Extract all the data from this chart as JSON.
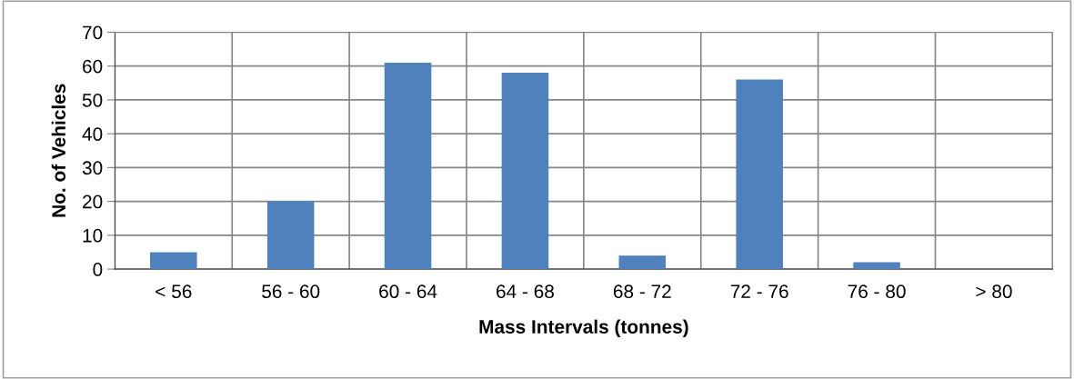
{
  "chart_data": {
    "type": "bar",
    "xlabel": "Mass Intervals (tonnes)",
    "ylabel": "No. of Vehicles",
    "categories": [
      "< 56",
      "56 - 60",
      "60 - 64",
      "64 - 68",
      "68 - 72",
      "72 - 76",
      "76 - 80",
      "> 80"
    ],
    "values": [
      5,
      20,
      61,
      58,
      4,
      56,
      2,
      0
    ],
    "color": "#4f81bd",
    "ylim": [
      0,
      70
    ],
    "yticks": [
      0,
      10,
      20,
      30,
      40,
      50,
      60,
      70
    ],
    "grid": true
  }
}
